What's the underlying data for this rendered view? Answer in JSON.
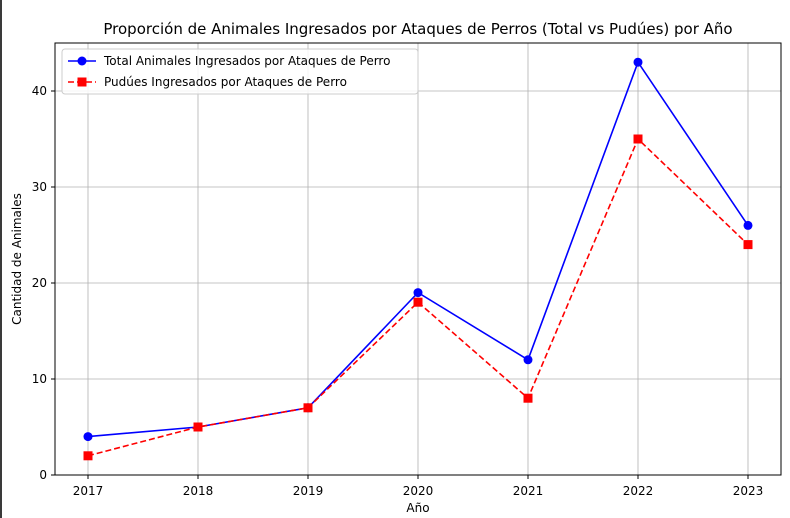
{
  "chart_data": {
    "type": "line",
    "title": "Proporción de Animales Ingresados por Ataques de Perros (Total vs Pudúes) por Año",
    "xlabel": "Año",
    "ylabel": "Cantidad de Animales",
    "categories": [
      "2017",
      "2018",
      "2019",
      "2020",
      "2021",
      "2022",
      "2023"
    ],
    "x": [
      2017,
      2018,
      2019,
      2020,
      2021,
      2022,
      2023
    ],
    "yticks": [
      "0",
      "10",
      "20",
      "30",
      "40"
    ],
    "ylim": [
      0,
      45
    ],
    "xlim": [
      2016.7,
      2023.3
    ],
    "grid": true,
    "legend_position": "top-left",
    "series": [
      {
        "name": "Total Animales Ingresados por Ataques de Perro",
        "values": [
          4,
          5,
          7,
          19,
          12,
          43,
          26
        ],
        "color": "#0000ff",
        "marker": "circle",
        "line_style": "solid"
      },
      {
        "name": "Pudúes Ingresados por Ataques de Perro",
        "values": [
          2,
          5,
          7,
          18,
          8,
          35,
          24
        ],
        "color": "#ff0000",
        "marker": "square",
        "line_style": "dashed"
      }
    ]
  }
}
